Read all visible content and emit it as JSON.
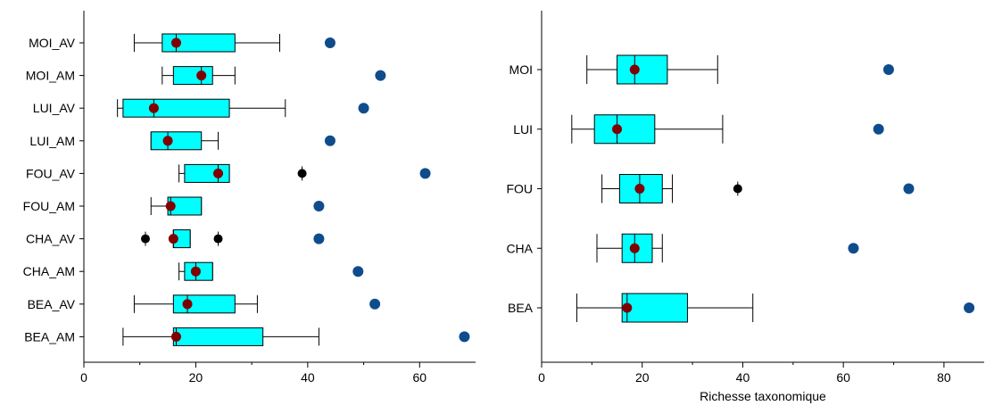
{
  "colors": {
    "box_fill": "#00ffff",
    "box_stroke": "#000000",
    "median_mean_marker": "#800000",
    "outlier_marker": "#000000",
    "extra_point_marker": "#0f4c8c",
    "axis": "#000000"
  },
  "chart_data": [
    {
      "type": "box",
      "orientation": "horizontal",
      "title": "",
      "xlabel": "",
      "ylabel": "",
      "xlim": [
        0,
        70
      ],
      "x_ticks": [
        0,
        20,
        40,
        60
      ],
      "x_minor_ticks": [
        10,
        30,
        50
      ],
      "grid": false,
      "categories": [
        "MOI_AV",
        "MOI_AM",
        "LUI_AV",
        "LUI_AM",
        "FOU_AV",
        "FOU_AM",
        "CHA_AV",
        "CHA_AM",
        "BEA_AV",
        "BEA_AM"
      ],
      "boxes": [
        {
          "category": "MOI_AV",
          "whisker_low": 9,
          "q1": 14,
          "median": 16.5,
          "q3": 27,
          "whisker_high": 35,
          "mean": 16.5,
          "outliers": [],
          "extra_point": 44
        },
        {
          "category": "MOI_AM",
          "whisker_low": 14,
          "q1": 16,
          "median": 21,
          "q3": 23,
          "whisker_high": 27,
          "mean": 21,
          "outliers": [],
          "extra_point": 53
        },
        {
          "category": "LUI_AV",
          "whisker_low": 6,
          "q1": 7,
          "median": 12.5,
          "q3": 26,
          "whisker_high": 36,
          "mean": 12.5,
          "outliers": [],
          "extra_point": 50
        },
        {
          "category": "LUI_AM",
          "whisker_low": 12,
          "q1": 12,
          "median": 15,
          "q3": 21,
          "whisker_high": 24,
          "mean": 15,
          "outliers": [],
          "extra_point": 44
        },
        {
          "category": "FOU_AV",
          "whisker_low": 17,
          "q1": 18,
          "median": 24,
          "q3": 26,
          "whisker_high": 26,
          "mean": 24,
          "outliers": [
            39
          ],
          "extra_point": 61
        },
        {
          "category": "FOU_AM",
          "whisker_low": 12,
          "q1": 15,
          "median": 15.5,
          "q3": 21,
          "whisker_high": 21,
          "mean": 15.5,
          "outliers": [],
          "extra_point": 42
        },
        {
          "category": "CHA_AV",
          "whisker_low": 16,
          "q1": 16,
          "median": 16,
          "q3": 19,
          "whisker_high": 19,
          "mean": 16,
          "outliers": [
            11,
            24
          ],
          "extra_point": 42
        },
        {
          "category": "CHA_AM",
          "whisker_low": 17,
          "q1": 18,
          "median": 20,
          "q3": 23,
          "whisker_high": 23,
          "mean": 20,
          "outliers": [],
          "extra_point": 49
        },
        {
          "category": "BEA_AV",
          "whisker_low": 9,
          "q1": 16,
          "median": 18.5,
          "q3": 27,
          "whisker_high": 31,
          "mean": 18.5,
          "outliers": [],
          "extra_point": 52
        },
        {
          "category": "BEA_AM",
          "whisker_low": 7,
          "q1": 16,
          "median": 16.5,
          "q3": 32,
          "whisker_high": 42,
          "mean": 16.5,
          "outliers": [],
          "extra_point": 68
        }
      ]
    },
    {
      "type": "box",
      "orientation": "horizontal",
      "title": "",
      "xlabel": "Richesse taxonomique",
      "ylabel": "",
      "xlim": [
        0,
        88
      ],
      "x_ticks": [
        0,
        20,
        40,
        60,
        80
      ],
      "x_minor_ticks": [
        10,
        30,
        50,
        70
      ],
      "grid": false,
      "categories": [
        "MOI",
        "LUI",
        "FOU",
        "CHA",
        "BEA"
      ],
      "boxes": [
        {
          "category": "MOI",
          "whisker_low": 9,
          "q1": 15,
          "median": 18.5,
          "q3": 25,
          "whisker_high": 35,
          "mean": 18.5,
          "outliers": [],
          "extra_point": 69
        },
        {
          "category": "LUI",
          "whisker_low": 6,
          "q1": 10.5,
          "median": 15,
          "q3": 22.5,
          "whisker_high": 36,
          "mean": 15,
          "outliers": [],
          "extra_point": 67
        },
        {
          "category": "FOU",
          "whisker_low": 12,
          "q1": 15.5,
          "median": 19.5,
          "q3": 24,
          "whisker_high": 26,
          "mean": 19.5,
          "outliers": [
            39
          ],
          "extra_point": 73
        },
        {
          "category": "CHA",
          "whisker_low": 11,
          "q1": 16,
          "median": 18.5,
          "q3": 22,
          "whisker_high": 24,
          "mean": 18.5,
          "outliers": [],
          "extra_point": 62
        },
        {
          "category": "BEA",
          "whisker_low": 7,
          "q1": 16,
          "median": 17,
          "q3": 29,
          "whisker_high": 42,
          "mean": 17,
          "outliers": [],
          "extra_point": 85
        }
      ]
    }
  ]
}
